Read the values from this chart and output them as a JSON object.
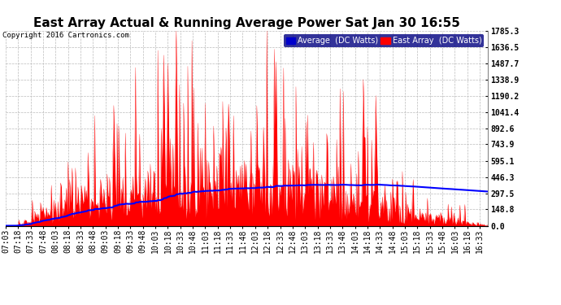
{
  "title": "East Array Actual & Running Average Power Sat Jan 30 16:55",
  "copyright": "Copyright 2016 Cartronics.com",
  "ylabel_right_ticks": [
    0.0,
    148.8,
    297.5,
    446.3,
    595.1,
    743.9,
    892.6,
    1041.4,
    1190.2,
    1338.9,
    1487.7,
    1636.5,
    1785.3
  ],
  "ymax": 1785.3,
  "ymin": 0.0,
  "fill_color": "#FF0000",
  "avg_line_color": "#0000FF",
  "background_color": "#FFFFFF",
  "grid_color": "#BBBBBB",
  "title_fontsize": 11,
  "tick_fontsize": 7,
  "legend_avg_label": "Average  (DC Watts)",
  "legend_east_label": "East Array  (DC Watts)"
}
